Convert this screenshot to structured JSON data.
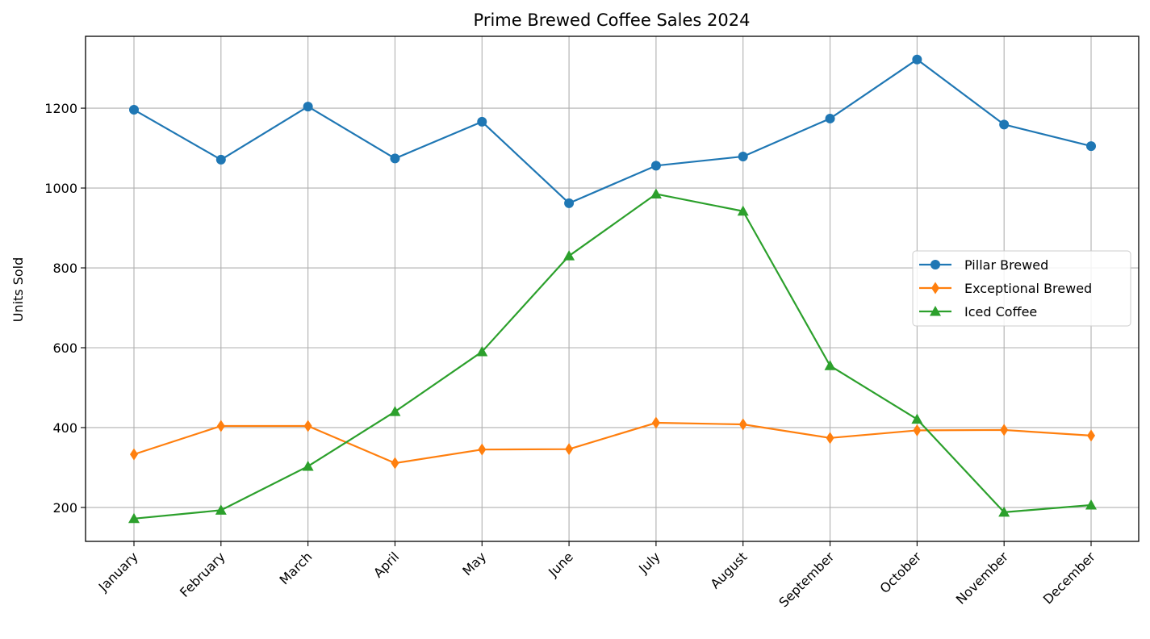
{
  "chart_data": {
    "type": "line",
    "title": "Prime Brewed Coffee Sales 2024",
    "xlabel": "",
    "ylabel": "Units Sold",
    "categories": [
      "January",
      "February",
      "March",
      "April",
      "May",
      "June",
      "July",
      "August",
      "September",
      "October",
      "November",
      "December"
    ],
    "ylim": [
      115,
      1380
    ],
    "yticks": [
      200,
      400,
      600,
      800,
      1000,
      1200
    ],
    "grid": true,
    "legend_position": "center-right",
    "series": [
      {
        "name": "Pillar Brewed",
        "color": "#1f77b4",
        "marker": "circle",
        "values": [
          1196,
          1071,
          1204,
          1074,
          1166,
          962,
          1056,
          1079,
          1174,
          1322,
          1159,
          1105
        ]
      },
      {
        "name": "Exceptional Brewed",
        "color": "#ff7f0e",
        "marker": "diamond",
        "values": [
          333,
          404,
          404,
          311,
          345,
          346,
          412,
          408,
          374,
          393,
          394,
          380
        ]
      },
      {
        "name": "Iced Coffee",
        "color": "#2ca02c",
        "marker": "triangle",
        "values": [
          172,
          193,
          303,
          440,
          590,
          830,
          985,
          942,
          555,
          421,
          188,
          206
        ]
      }
    ]
  }
}
